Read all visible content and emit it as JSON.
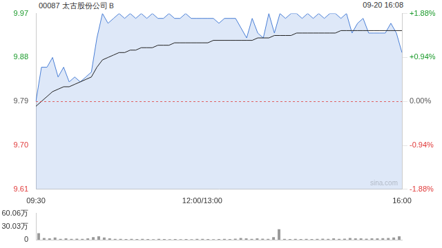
{
  "chart_data": [
    {
      "type": "line",
      "title": "00087 太古股份公司Ｂ",
      "subtitle": "09-20 16:08",
      "categories": [
        "09:30",
        null,
        null,
        null,
        null,
        null,
        null,
        null,
        null,
        null,
        null,
        null,
        null,
        null,
        null,
        null,
        null,
        null,
        null,
        null,
        null,
        null,
        null,
        null,
        null,
        null,
        null,
        null,
        null,
        null,
        "12:00/13:00",
        null,
        null,
        null,
        null,
        null,
        null,
        null,
        null,
        null,
        null,
        null,
        null,
        null,
        null,
        null,
        null,
        null,
        null,
        null,
        null,
        null,
        null,
        null,
        null,
        null,
        null,
        null,
        null,
        null,
        null,
        null,
        null,
        null,
        null,
        null,
        "16:00"
      ],
      "series": [
        {
          "type": "area",
          "color": "#4a7fd6",
          "values": [
            9.79,
            9.86,
            9.86,
            9.88,
            9.84,
            9.86,
            9.83,
            9.84,
            9.83,
            9.84,
            9.85,
            9.92,
            9.97,
            9.95,
            9.96,
            9.97,
            9.96,
            9.97,
            9.96,
            9.97,
            9.96,
            9.97,
            9.96,
            9.96,
            9.97,
            9.96,
            9.96,
            9.97,
            9.96,
            9.96,
            9.96,
            9.96,
            9.96,
            9.95,
            9.96,
            9.96,
            9.96,
            9.94,
            9.92,
            9.96,
            9.93,
            9.92,
            9.97,
            9.93,
            9.97,
            9.96,
            9.97,
            9.97,
            9.96,
            9.97,
            9.96,
            9.97,
            9.96,
            9.97,
            9.97,
            9.96,
            9.97,
            9.93,
            9.95,
            9.96,
            9.93,
            9.93,
            9.93,
            9.93,
            9.95,
            9.93,
            9.89
          ]
        },
        {
          "type": "line",
          "color": "#222222",
          "values": [
            9.78,
            9.79,
            9.8,
            9.81,
            9.815,
            9.82,
            9.82,
            9.825,
            9.83,
            9.835,
            9.84,
            9.86,
            9.875,
            9.88,
            9.885,
            9.89,
            9.89,
            9.895,
            9.895,
            9.9,
            9.9,
            9.9,
            9.905,
            9.905,
            9.905,
            9.91,
            9.91,
            9.91,
            9.91,
            9.91,
            9.91,
            9.91,
            9.915,
            9.915,
            9.915,
            9.915,
            9.915,
            9.915,
            9.915,
            9.915,
            9.92,
            9.92,
            9.92,
            9.925,
            9.925,
            9.925,
            9.925,
            9.93,
            9.93,
            9.93,
            9.93,
            9.93,
            9.93,
            9.93,
            9.93,
            9.935,
            9.935,
            9.935,
            9.935,
            9.935,
            9.935,
            9.935,
            9.935,
            9.935,
            9.935,
            9.935,
            9.935
          ]
        }
      ],
      "ylim": [
        9.61,
        9.97
      ],
      "yticks": [
        9.61,
        {
          "value": 9.7,
          "label": "9.70"
        },
        9.79,
        9.88,
        9.97
      ],
      "y2lim": [
        -1.88,
        1.88
      ],
      "y2ticks": [
        {
          "value": -1.88,
          "label": "-1.88%"
        },
        {
          "value": -0.94,
          "label": "-0.94%"
        },
        {
          "value": 0,
          "label": "0.00%"
        },
        {
          "value": 0.94,
          "label": "+0.94%"
        },
        {
          "value": 1.88,
          "label": "+1.88%"
        }
      ],
      "reference_line": 9.79,
      "annotations": [
        "sina.com"
      ],
      "grid": false
    },
    {
      "type": "bar",
      "categories": [
        null,
        null,
        null,
        null,
        null,
        null,
        null,
        null,
        null,
        null,
        null,
        null,
        null,
        null,
        null,
        null,
        null,
        null,
        null,
        null,
        null,
        null,
        null,
        null,
        null,
        null,
        null,
        null,
        null,
        null,
        null,
        null,
        null,
        null,
        null,
        null,
        null,
        null,
        null,
        null,
        null,
        null,
        null,
        null,
        null,
        null,
        null,
        null,
        null,
        null,
        null,
        null,
        null,
        null,
        null,
        null,
        null,
        null,
        null,
        null,
        null,
        null,
        null,
        null,
        null,
        null,
        null
      ],
      "values": [
        150000,
        40000,
        30000,
        50000,
        20000,
        30000,
        20000,
        25000,
        20000,
        30000,
        60000,
        80000,
        50000,
        30000,
        20000,
        20000,
        15000,
        20000,
        15000,
        20000,
        15000,
        10000,
        20000,
        15000,
        10000,
        15000,
        10000,
        15000,
        10000,
        20000,
        20000,
        15000,
        10000,
        15000,
        20000,
        15000,
        25000,
        40000,
        30000,
        20000,
        30000,
        25000,
        20000,
        60000,
        240000,
        20000,
        15000,
        20000,
        15000,
        20000,
        15000,
        20000,
        25000,
        20000,
        30000,
        20000,
        25000,
        40000,
        30000,
        30000,
        25000,
        30000,
        30000,
        35000,
        40000,
        50000,
        80000
      ],
      "color": "#9a9a9a",
      "ylim": [
        0,
        600600
      ],
      "yticks": [
        0,
        {
          "value": 300300,
          "label": "30.03万"
        },
        {
          "value": 600600,
          "label": "60.06万"
        }
      ],
      "tick_labels": "y",
      "grid": false
    }
  ]
}
